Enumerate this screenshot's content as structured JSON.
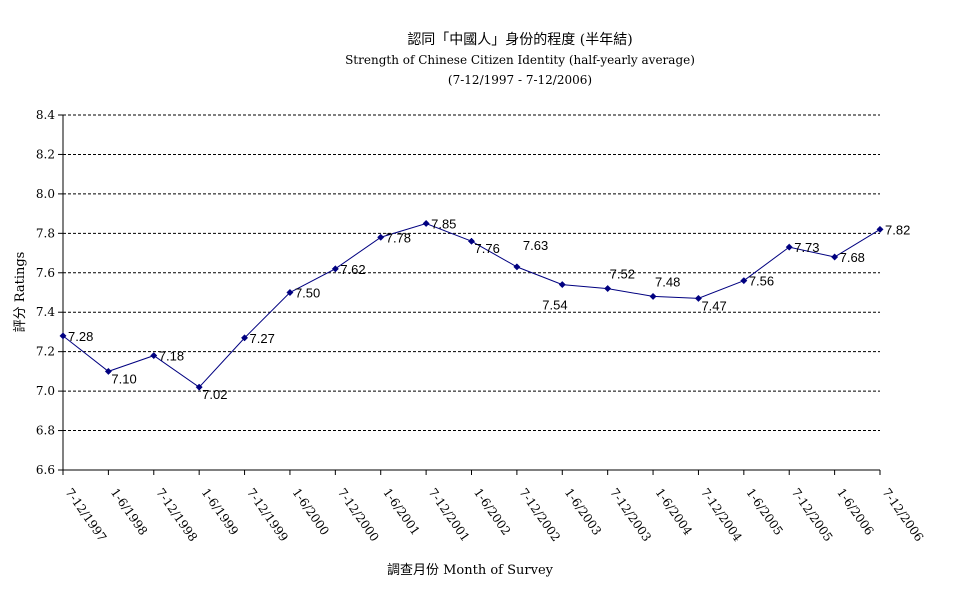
{
  "chart_data": {
    "type": "line",
    "title": "認同「中國人」身份的程度 (半年結)",
    "subtitle": "Strength of Chinese Citizen Identity (half-yearly average)",
    "subtitle2": "(7-12/1997 - 7-12/2006)",
    "xlabel": "調查月份 Month of Survey",
    "ylabel": "評分 Ratings",
    "ylim": [
      6.6,
      8.4
    ],
    "ytick_step": 0.2,
    "yticks": [
      "6.6",
      "6.8",
      "7.0",
      "7.2",
      "7.4",
      "7.6",
      "7.8",
      "8.0",
      "8.2",
      "8.4"
    ],
    "grid": true,
    "legend": "none",
    "line_color": "#000080",
    "marker_color": "#000080",
    "categories": [
      "7-12/1997",
      "1-6/1998",
      "7-12/1998",
      "1-6/1999",
      "7-12/1999",
      "1-6/2000",
      "7-12/2000",
      "1-6/2001",
      "7-12/2001",
      "1-6/2002",
      "7-12/2002",
      "1-6/2003",
      "7-12/2003",
      "1-6/2004",
      "7-12/2004",
      "1-6/2005",
      "7-12/2005",
      "1-6/2006",
      "7-12/2006"
    ],
    "values": [
      7.28,
      7.1,
      7.18,
      7.02,
      7.27,
      7.5,
      7.62,
      7.78,
      7.85,
      7.76,
      7.63,
      7.54,
      7.52,
      7.48,
      7.47,
      7.56,
      7.73,
      7.68,
      7.82
    ],
    "data_labels": [
      "7.28",
      "7.10",
      "7.18",
      "7.02",
      "7.27",
      "7.50",
      "7.62",
      "7.78",
      "7.85",
      "7.76",
      "7.63",
      "7.54",
      "7.52",
      "7.48",
      "7.47",
      "7.56",
      "7.73",
      "7.68",
      "7.82"
    ]
  }
}
